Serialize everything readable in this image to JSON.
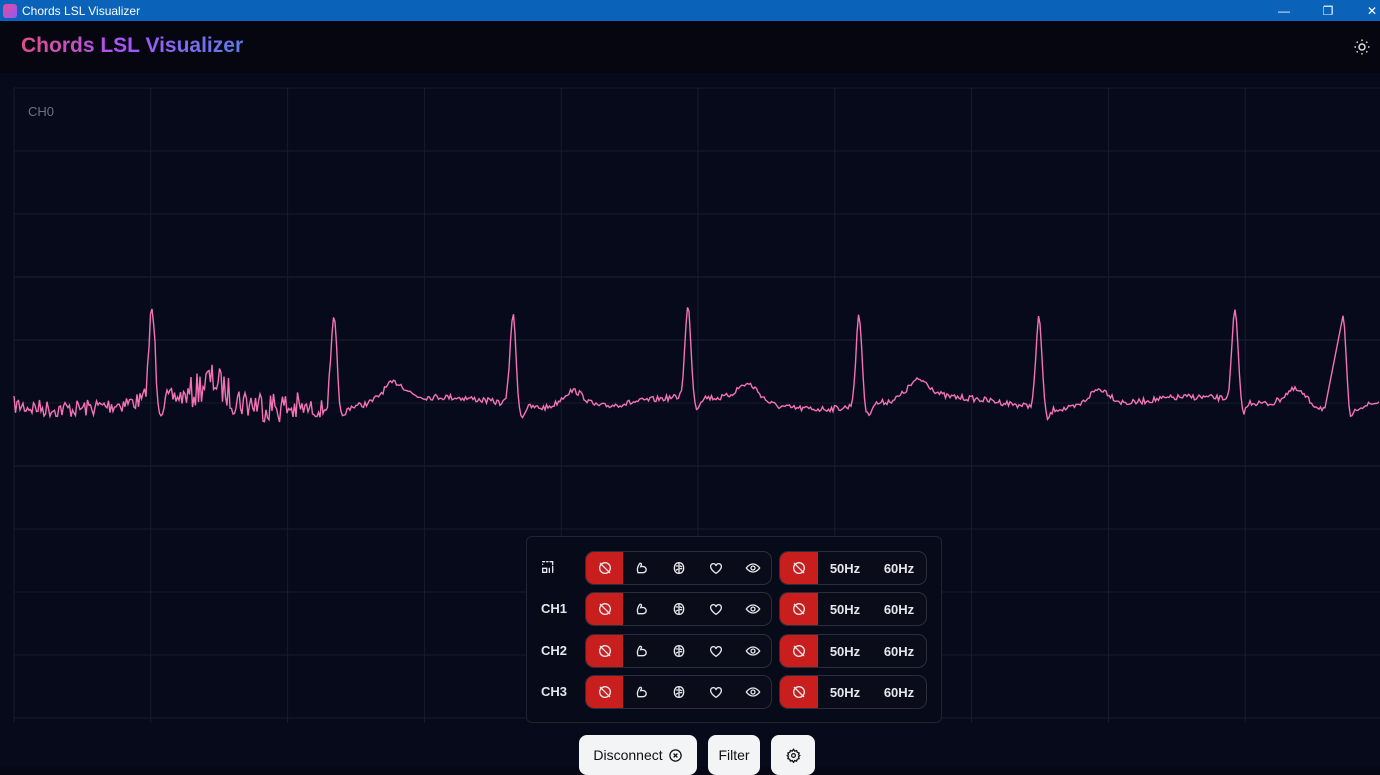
{
  "window": {
    "title": "Chords LSL Visualizer",
    "controls": [
      "minimize",
      "restore",
      "close"
    ]
  },
  "header": {
    "title": "Chords LSL Visualizer",
    "theme_icon": "sun-icon"
  },
  "plot": {
    "channel_label": "CH0",
    "trace_color": "#f472b6"
  },
  "panel": {
    "rows": [
      {
        "label": "",
        "icon": "select-all-icon"
      },
      {
        "label": "CH1"
      },
      {
        "label": "CH2"
      },
      {
        "label": "CH3"
      }
    ],
    "filters": [
      "no-filter",
      "muscle",
      "brain",
      "heart",
      "eye"
    ],
    "notch": {
      "off": "no-filter",
      "options": [
        "50Hz",
        "60Hz"
      ]
    },
    "active_color": "#c81e1e"
  },
  "footer": {
    "disconnect": "Disconnect",
    "filter": "Filter",
    "settings_icon": "gear-icon"
  }
}
